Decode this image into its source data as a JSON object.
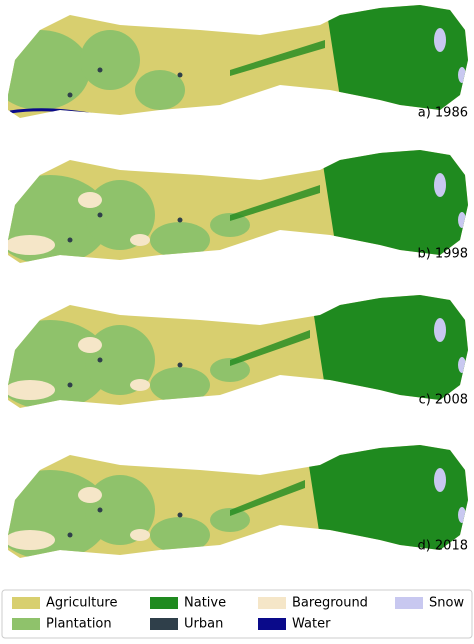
{
  "panels": [
    {
      "label": "a) 1986"
    },
    {
      "label": "b) 1998"
    },
    {
      "label": "c) 2008"
    },
    {
      "label": "d) 2018"
    }
  ],
  "legend": {
    "items": [
      {
        "name": "Agriculture",
        "color": "#d8cf6f"
      },
      {
        "name": "Plantation",
        "color": "#8fc26b"
      },
      {
        "name": "Native",
        "color": "#1f8a1f"
      },
      {
        "name": "Urban",
        "color": "#2f3f4a"
      },
      {
        "name": "Bareground",
        "color": "#f5e6c8"
      },
      {
        "name": "Water",
        "color": "#0a0a8a"
      },
      {
        "name": "Snow",
        "color": "#c8c8f0"
      }
    ]
  }
}
